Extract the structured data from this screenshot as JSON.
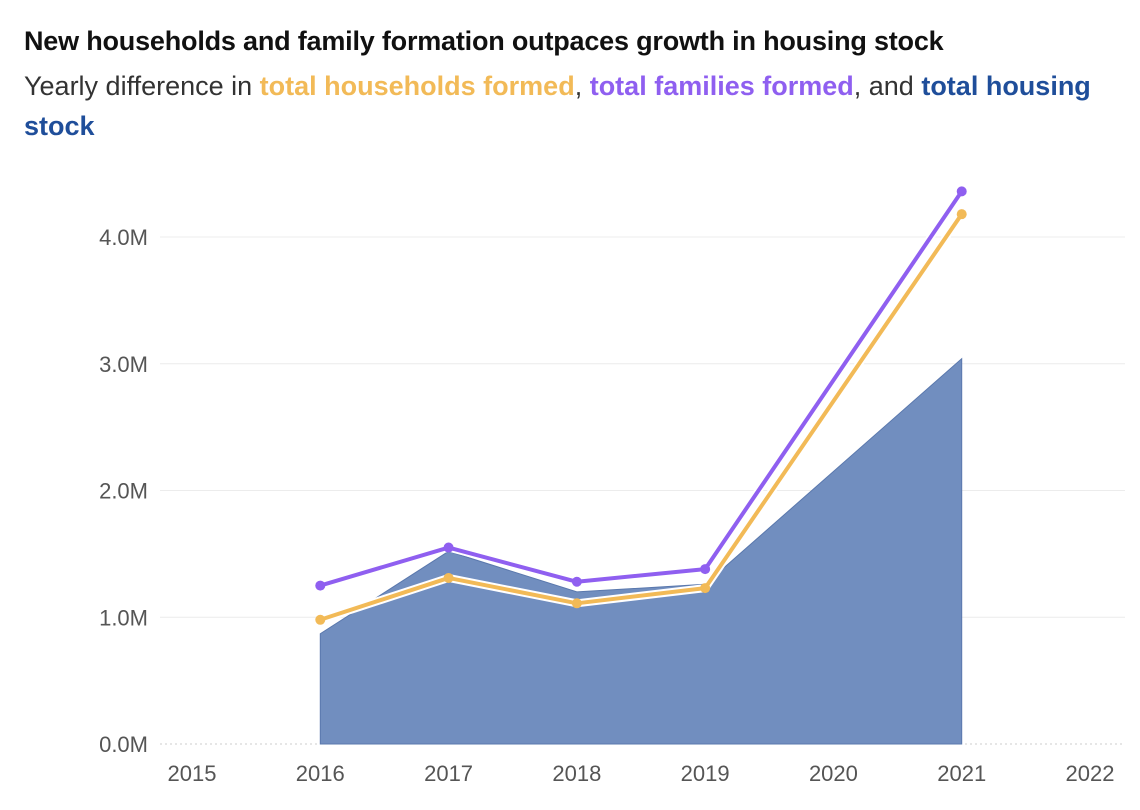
{
  "header": {
    "title": "New households and family formation outpaces growth in housing stock",
    "subtitle_parts": {
      "intro": "Yearly difference in ",
      "households": "total households formed",
      "sep1": ", ",
      "families": "total families formed",
      "sep2": ", and ",
      "housing": "total housing stock"
    }
  },
  "colors": {
    "households": "#F2BA57",
    "families": "#8F5FF0",
    "housing": "#6E8CBE",
    "housing_text": "#1F4E9A"
  },
  "chart_data": {
    "type": "area",
    "title": "New households and family formation outpaces growth in housing stock",
    "subtitle": "Yearly difference in total households formed, total families formed, and total housing stock",
    "xlabel": "",
    "ylabel": "",
    "x_ticks": [
      "2015",
      "2016",
      "2017",
      "2018",
      "2019",
      "2020",
      "2021",
      "2022"
    ],
    "xlim": [
      2015,
      2022
    ],
    "y_ticks": [
      "0.0M",
      "1.0M",
      "2.0M",
      "3.0M",
      "4.0M"
    ],
    "ylim": [
      0,
      4.5
    ],
    "grid": "horizontal",
    "series": [
      {
        "name": "total housing stock",
        "type": "area",
        "color": "#6E8CBE",
        "x": [
          2016,
          2017,
          2018,
          2019,
          2021
        ],
        "y": [
          0.87,
          1.52,
          1.2,
          1.26,
          3.04
        ]
      },
      {
        "name": "total households formed",
        "type": "line",
        "color": "#F2BA57",
        "x": [
          2016,
          2017,
          2018,
          2019,
          2021
        ],
        "y": [
          0.98,
          1.31,
          1.11,
          1.23,
          4.18
        ]
      },
      {
        "name": "total families formed",
        "type": "line",
        "color": "#8F5FF0",
        "x": [
          2016,
          2017,
          2018,
          2019,
          2021
        ],
        "y": [
          1.25,
          1.55,
          1.28,
          1.38,
          4.36
        ]
      }
    ]
  }
}
